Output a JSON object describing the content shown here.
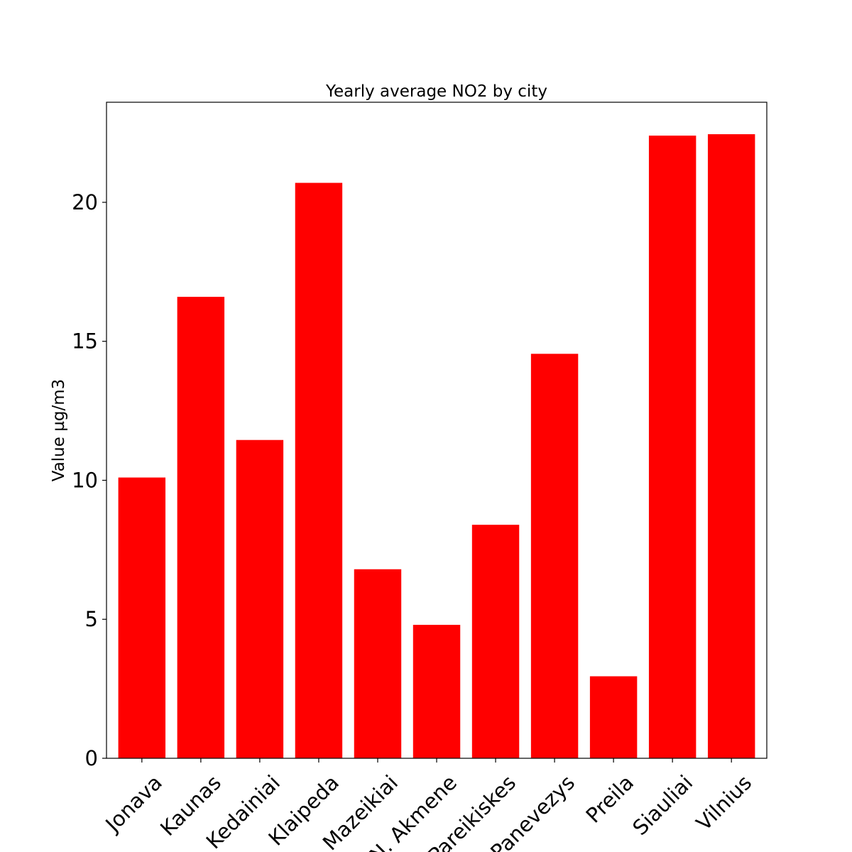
{
  "chart_data": {
    "type": "bar",
    "title": "Yearly average NO2 by city",
    "xlabel": "",
    "ylabel": "Value µg/m3",
    "categories": [
      "Jonava",
      "Kaunas",
      "Kedainiai",
      "Klaipeda",
      "Mazeikiai",
      "N. Akmene",
      "Pareikiskes",
      "Panevezys",
      "Preila",
      "Siauliai",
      "Vilnius"
    ],
    "values": [
      10.1,
      16.6,
      11.45,
      20.7,
      6.8,
      4.8,
      8.4,
      14.55,
      2.95,
      22.4,
      22.45
    ],
    "ylim": [
      0,
      23.6
    ],
    "yticks": [
      0,
      5,
      10,
      15,
      20
    ],
    "bar_color": "#ff0000",
    "grid": false,
    "legend": "none"
  }
}
